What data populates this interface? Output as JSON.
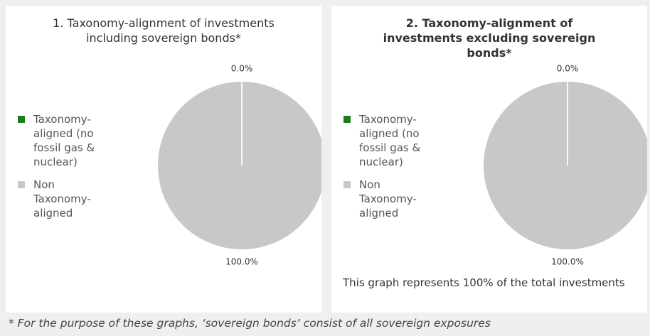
{
  "chart_data": [
    {
      "type": "pie",
      "title": "1. Taxonomy-alignment of investments including sovereign bonds*",
      "title_weight": "normal",
      "categories": [
        "Taxonomy-aligned (no fossil gas & nuclear)",
        "Non Taxonomy-aligned"
      ],
      "values": [
        0,
        100
      ],
      "value_labels": [
        "0.0%",
        "100.0%"
      ],
      "colors": [
        "#1e7b1e",
        "#c8c8c8"
      ]
    },
    {
      "type": "pie",
      "title": "2. Taxonomy-alignment of investments excluding sovereign bonds*",
      "title_weight": "bold",
      "categories": [
        "Taxonomy-aligned (no fossil gas & nuclear)",
        "Non Taxonomy-aligned"
      ],
      "values": [
        0,
        100
      ],
      "value_labels": [
        "0.0%",
        "100.0%"
      ],
      "colors": [
        "#1e7b1e",
        "#c8c8c8"
      ],
      "note": "This graph represents 100% of the total investments"
    }
  ],
  "footnote": "* For the purpose of these graphs, ‘sovereign bonds’ consist of all sovereign exposures"
}
